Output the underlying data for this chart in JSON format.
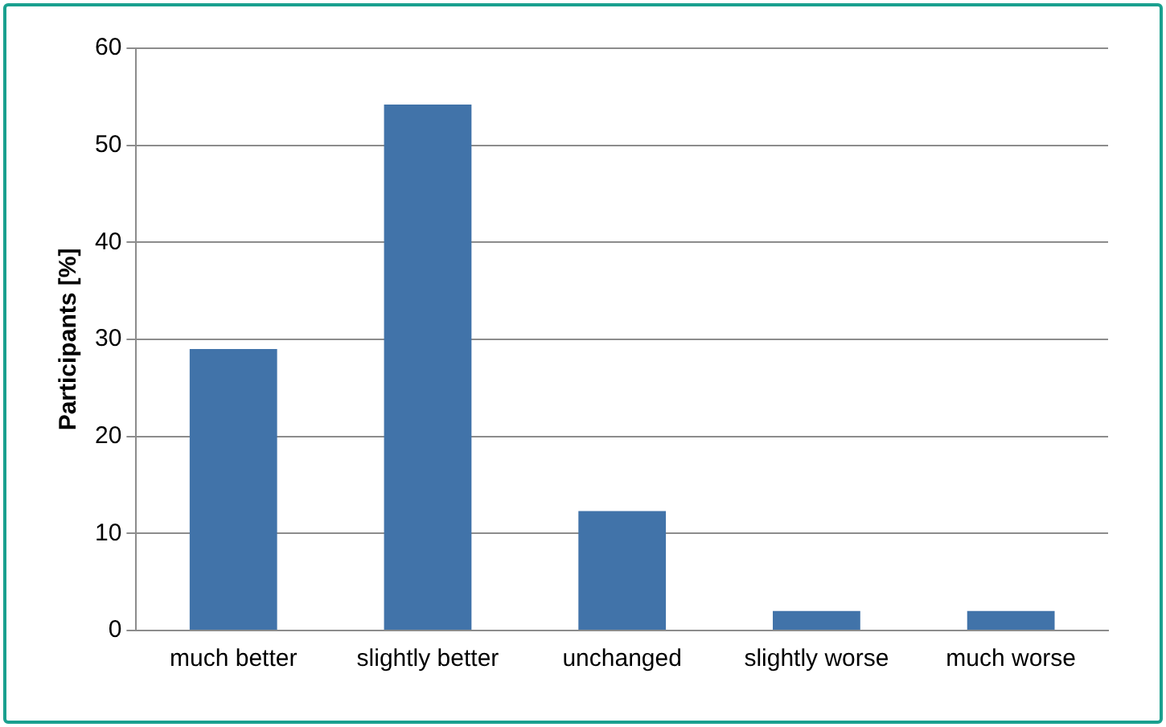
{
  "chart_data": {
    "type": "bar",
    "ylabel": "Participants [%]",
    "categories": [
      "much better",
      "slightly better",
      "unchanged",
      "slightly worse",
      "much worse"
    ],
    "values": [
      29,
      54.2,
      12.3,
      2,
      2
    ],
    "color": "#4173a9",
    "ylim": [
      0,
      60
    ],
    "yticks": [
      0,
      10,
      20,
      30,
      40,
      50,
      60
    ],
    "grid": "y",
    "legend": false
  }
}
